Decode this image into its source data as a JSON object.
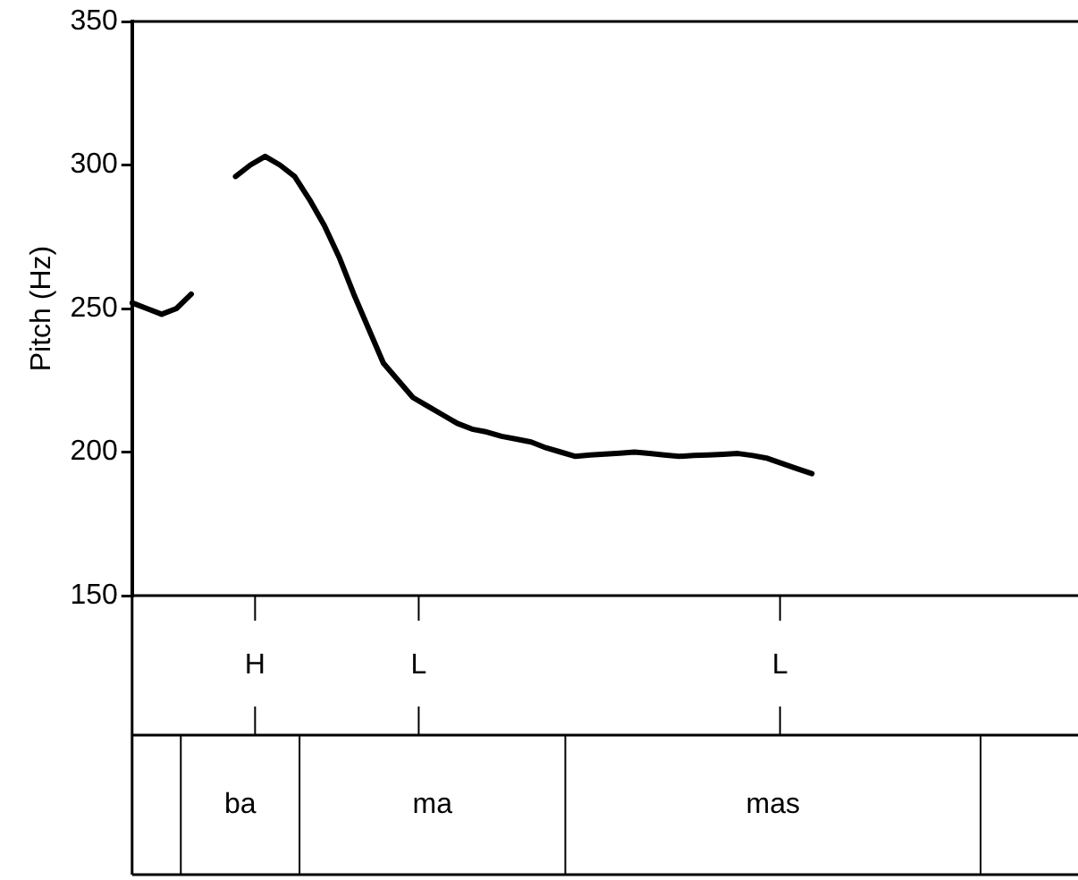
{
  "chart_data": {
    "type": "line",
    "ylabel": "Pitch (Hz)",
    "categories": [
      null,
      null,
      null,
      null,
      null,
      null,
      null,
      null,
      null,
      null,
      null,
      null,
      null,
      null,
      null,
      null,
      null,
      null,
      null,
      null,
      null,
      null,
      null,
      null,
      null,
      null,
      null,
      null,
      null,
      null,
      null,
      null,
      null,
      null,
      null,
      null,
      null,
      null,
      null,
      null,
      null,
      null,
      null,
      null,
      null,
      null,
      null,
      null,
      null,
      null,
      null,
      null,
      null,
      null,
      null,
      null,
      null,
      null,
      null,
      null,
      null,
      null,
      null,
      null,
      null
    ],
    "series": [
      {
        "color": "#000000",
        "values": [
          252,
          250,
          248,
          250,
          255,
          null,
          null,
          null,
          null,
          null,
          null,
          null,
          null,
          null,
          null,
          null,
          null,
          null,
          null,
          null,
          null,
          null,
          null,
          null,
          null,
          null,
          null,
          null,
          null,
          null,
          null,
          null,
          null,
          null,
          null,
          null,
          null,
          null,
          null,
          null,
          null,
          null,
          null,
          null,
          null,
          null,
          null,
          null,
          null,
          null,
          null,
          null,
          null,
          null,
          null,
          null,
          null,
          null,
          null,
          null,
          null,
          null,
          null,
          null,
          null
        ]
      },
      {
        "color": "#000000",
        "values": [
          null,
          null,
          null,
          null,
          null,
          null,
          null,
          296,
          300,
          303,
          300,
          296,
          288,
          279,
          268,
          255,
          243,
          231,
          225,
          219,
          216,
          213,
          210,
          208,
          207,
          205.5,
          204.5,
          203.5,
          201.5,
          200,
          198.5,
          199,
          199.3,
          199.6,
          200,
          199.5,
          199,
          198.5,
          198.8,
          199,
          199.2,
          199.5,
          198.8,
          197.8,
          196,
          194.2,
          192.5,
          null,
          null,
          null,
          null,
          null,
          null,
          null,
          null,
          null,
          null,
          null,
          null,
          null,
          null,
          null,
          null,
          null,
          null
        ]
      }
    ],
    "marker": "none",
    "line_style": "solid",
    "grid": false,
    "legend": false,
    "tick_labels": "y",
    "ylim": [
      150,
      350
    ],
    "yticks": [
      150,
      200,
      250,
      300,
      350
    ],
    "annotations": [
      "H",
      "L",
      "L",
      "ba",
      "ma",
      "mas"
    ]
  }
}
